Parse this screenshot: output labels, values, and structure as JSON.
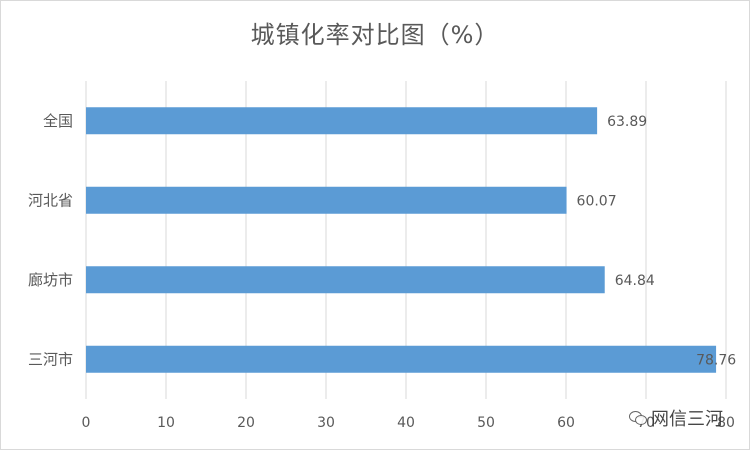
{
  "chart_data": {
    "type": "bar",
    "orientation": "horizontal",
    "title": "城镇化率对比图（%）",
    "categories": [
      "全国",
      "河北省",
      "廊坊市",
      "三河市"
    ],
    "values": [
      63.89,
      60.07,
      64.84,
      78.76
    ],
    "value_labels": [
      "63.89",
      "60.07",
      "64.84",
      "78.76"
    ],
    "x_ticks": [
      "0",
      "10",
      "20",
      "30",
      "40",
      "50",
      "60",
      "70",
      "80"
    ],
    "xlim": [
      0,
      80
    ],
    "grid": "vertical",
    "legend": "none",
    "bar_color": "#5b9bd5"
  },
  "watermark": {
    "icon": "wechat-icon",
    "text": "网信三河"
  }
}
